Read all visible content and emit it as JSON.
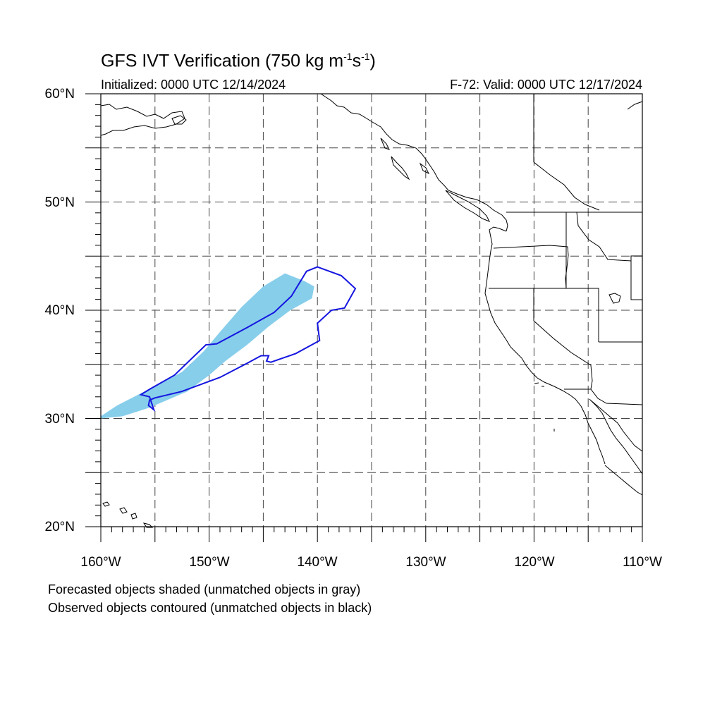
{
  "title": {
    "prefix": "GFS IVT Verification (750 kg m",
    "exp1": "-1",
    "mid": "s",
    "exp2": "-1",
    "suffix": ")"
  },
  "subtitle_left": "Initialized: 0000 UTC 12/14/2024",
  "subtitle_right": "F-72: Valid: 0000 UTC 12/17/2024",
  "axes": {
    "lon_range": [
      -160,
      -110
    ],
    "lat_range": [
      20,
      60
    ],
    "y_ticks": [
      "60°N",
      "50°N",
      "40°N",
      "30°N",
      "20°N"
    ],
    "x_ticks": [
      "160°W",
      "150°W",
      "140°W",
      "130°W",
      "120°W",
      "110°W"
    ],
    "grid": "dashed every 5 degrees"
  },
  "legend": {
    "line1": "Forecasted objects shaded (unmatched objects in gray)",
    "line2": "Observed objects contoured (unmatched objects in black)"
  },
  "colors": {
    "forecast_fill": "#87ceeb",
    "observed_contour": "#1515e0",
    "coastline": "#000000",
    "grid": "#444444"
  },
  "objects": {
    "forecast_shaded": {
      "type": "matched forecast object",
      "lonlat": [
        [
          -160,
          30
        ],
        [
          -158,
          30.2
        ],
        [
          -155.5,
          31
        ],
        [
          -152,
          32.5
        ],
        [
          -150,
          34
        ],
        [
          -148.5,
          35.3
        ],
        [
          -146.5,
          36.8
        ],
        [
          -144.5,
          38.5
        ],
        [
          -142.5,
          40
        ],
        [
          -140.5,
          41.1
        ],
        [
          -140.3,
          42.2
        ],
        [
          -141.2,
          42.7
        ],
        [
          -143,
          43.4
        ],
        [
          -145,
          42.2
        ],
        [
          -147,
          40.3
        ],
        [
          -149,
          38
        ],
        [
          -150.5,
          36.2
        ],
        [
          -152.5,
          34.3
        ],
        [
          -155,
          33
        ],
        [
          -158.5,
          31.2
        ],
        [
          -160,
          30.2
        ]
      ]
    },
    "observed_contour": {
      "type": "matched observed object",
      "lonlat": [
        [
          -156.3,
          32.2
        ],
        [
          -155.5,
          32.7
        ],
        [
          -153.2,
          34
        ],
        [
          -150.3,
          36.8
        ],
        [
          -149.3,
          36.9
        ],
        [
          -146.5,
          38.4
        ],
        [
          -144,
          39.8
        ],
        [
          -142.4,
          41.3
        ],
        [
          -141,
          43.6
        ],
        [
          -140,
          44
        ],
        [
          -137.8,
          43.2
        ],
        [
          -136.5,
          42
        ],
        [
          -137.5,
          40.2
        ],
        [
          -138.7,
          40
        ],
        [
          -140,
          38.8
        ],
        [
          -139.8,
          37.2
        ],
        [
          -142,
          36
        ],
        [
          -144.3,
          35.2
        ],
        [
          -144.7,
          35.3
        ],
        [
          -144.5,
          35.8
        ],
        [
          -145.2,
          35.8
        ],
        [
          -146.5,
          35.1
        ],
        [
          -149,
          33.8
        ],
        [
          -152.5,
          32.5
        ],
        [
          -155,
          31.9
        ],
        [
          -155.5,
          31.7
        ],
        [
          -155.6,
          31.2
        ],
        [
          -155.1,
          30.8
        ],
        [
          -155.5,
          32
        ],
        [
          -156.3,
          32.2
        ]
      ]
    }
  }
}
